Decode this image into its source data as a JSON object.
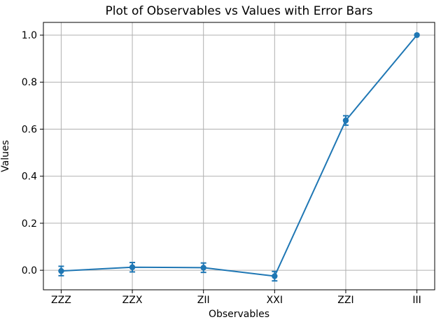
{
  "chart_data": {
    "type": "line",
    "title": "Plot of Observables vs Values with Error Bars",
    "xlabel": "Observables",
    "ylabel": "Values",
    "categories": [
      "ZZZ",
      "ZZX",
      "ZII",
      "XXI",
      "ZZI",
      "III"
    ],
    "series": [
      {
        "name": "values",
        "values": [
          -0.003,
          0.013,
          0.011,
          -0.025,
          0.637,
          1.0
        ],
        "errors": [
          0.02,
          0.02,
          0.02,
          0.02,
          0.02,
          0.0
        ]
      }
    ],
    "yticks": [
      0.0,
      0.2,
      0.4,
      0.6,
      0.8,
      1.0
    ],
    "ytick_labels": [
      "0.0",
      "0.2",
      "0.4",
      "0.6",
      "0.8",
      "1.0"
    ],
    "ylim": [
      -0.083,
      1.054
    ],
    "xlim": [
      -0.25,
      5.25
    ],
    "grid": true,
    "legend": "none",
    "colors": {
      "line": "#1f77b4",
      "grid": "#b0b0b0",
      "axis": "#000000",
      "text": "#000000",
      "background": "#ffffff"
    }
  }
}
